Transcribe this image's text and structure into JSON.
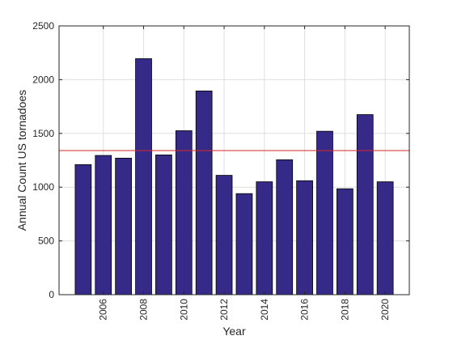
{
  "chart_data": {
    "type": "bar",
    "title": "",
    "xlabel": "Year",
    "ylabel": "Annual Count US tornadoes",
    "x": [
      2005,
      2006,
      2007,
      2008,
      2009,
      2010,
      2011,
      2012,
      2013,
      2014,
      2015,
      2016,
      2017,
      2018,
      2019,
      2020
    ],
    "values": [
      1210,
      1295,
      1270,
      2195,
      1300,
      1525,
      1895,
      1110,
      940,
      1050,
      1255,
      1060,
      1520,
      985,
      1675,
      1050
    ],
    "xticks": [
      "2006",
      "2008",
      "2010",
      "2012",
      "2014",
      "2016",
      "2018",
      "2020"
    ],
    "xlim": [
      2003.8,
      2021.2
    ],
    "yticks": [
      "0",
      "500",
      "1000",
      "1500",
      "2000",
      "2500"
    ],
    "ylim": [
      0,
      2500
    ],
    "reference_line": {
      "y": 1340,
      "color": "#d62728"
    },
    "grid": true,
    "legend": "none",
    "colors": {
      "bar_fill": "#352a87",
      "bar_edge": "#000000"
    }
  }
}
